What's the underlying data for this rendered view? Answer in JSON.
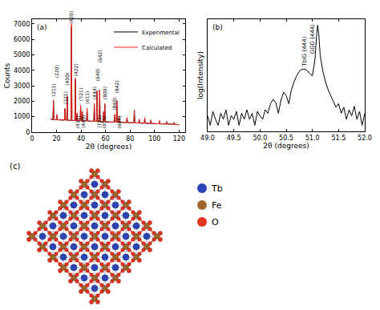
{
  "chart_data": [
    {
      "type": "line",
      "title": "(a)",
      "x_label": "2θ (degrees)",
      "y_label": "Counts",
      "x": [
        15,
        17.05,
        17.45,
        17.85,
        19.77,
        20.17,
        20.57,
        26.4,
        26.8,
        27.2,
        28.28,
        28.68,
        29.08,
        31.75,
        32.15,
        32.55,
        34.92,
        35.32,
        35.72,
        36.4,
        36.8,
        37.2,
        39.25,
        39.65,
        40.05,
        40.6,
        41.0,
        41.4,
        44.48,
        44.88,
        45.28,
        50.4,
        50.8,
        51.2,
        52.64,
        53.04,
        53.44,
        54.8,
        55.2,
        55.6,
        58.0,
        58.4,
        58.8,
        59.0,
        59.4,
        59.8,
        66.9,
        67.3,
        67.7,
        68.8,
        69.2,
        69.6,
        70.6,
        71.0,
        71.4,
        77.1,
        77.5,
        77.9,
        83.1,
        83.5,
        83.9,
        87.1,
        87.5,
        87.9,
        91.6,
        92.0,
        92.4,
        96.6,
        97.0,
        97.4,
        103.6,
        104.0,
        104.4,
        109.6,
        110.0,
        110.4,
        115.6,
        116.0,
        116.4,
        120
      ],
      "series": [
        {
          "name": "Experimental",
          "color": "#000000",
          "values": [
            850,
            810,
            2000,
            810,
            800,
            1100,
            800,
            780,
            1500,
            780,
            770,
            2300,
            770,
            760,
            6800,
            760,
            750,
            3400,
            750,
            745,
            1200,
            745,
            735,
            1700,
            735,
            730,
            1300,
            730,
            720,
            1500,
            720,
            700,
            1800,
            700,
            690,
            2600,
            690,
            685,
            2700,
            685,
            675,
            1300,
            675,
            670,
            1800,
            670,
            650,
            1100,
            650,
            645,
            2000,
            645,
            640,
            1000,
            640,
            620,
            900,
            620,
            600,
            1400,
            600,
            590,
            800,
            590,
            575,
            900,
            575,
            560,
            750,
            560,
            540,
            700,
            540,
            525,
            650,
            525,
            510,
            600,
            510,
            480
          ]
        },
        {
          "name": "Calculated",
          "color": "#e8231d",
          "values": [
            850,
            810,
            2100,
            810,
            800,
            1150,
            800,
            780,
            1550,
            780,
            770,
            2350,
            770,
            760,
            7000,
            760,
            750,
            3500,
            750,
            745,
            1250,
            745,
            735,
            1750,
            735,
            730,
            1350,
            730,
            720,
            1550,
            720,
            700,
            1850,
            700,
            690,
            2700,
            690,
            685,
            2750,
            685,
            675,
            1350,
            675,
            670,
            1850,
            670,
            650,
            1150,
            650,
            645,
            2050,
            645,
            640,
            1050,
            640,
            620,
            950,
            620,
            600,
            1450,
            600,
            590,
            850,
            590,
            575,
            950,
            575,
            560,
            800,
            560,
            540,
            750,
            540,
            525,
            700,
            525,
            510,
            650,
            510,
            480
          ]
        }
      ],
      "xlim": [
        0,
        125
      ],
      "xticks": [
        0,
        20,
        40,
        60,
        80,
        100,
        120
      ],
      "ylim": [
        0,
        7300
      ],
      "yticks": [
        0,
        1000,
        2000,
        3000,
        4000,
        5000,
        6000,
        7000
      ],
      "grid": false,
      "legend": "top right",
      "annotations": [
        {
          "text": "(211)",
          "x": 17.45,
          "y": 2200
        },
        {
          "text": "(220)",
          "x": 20.17,
          "y": 3400
        },
        {
          "text": "(321)",
          "x": 26.8,
          "y": 1700
        },
        {
          "text": "(400)",
          "x": 28.68,
          "y": 2900
        },
        {
          "text": "(420)",
          "x": 32.15,
          "y": 6900
        },
        {
          "text": "(422)",
          "x": 35.32,
          "y": 3500
        },
        {
          "text": "(521)",
          "x": 39.65,
          "y": 1900
        },
        {
          "text": "(611)",
          "x": 44.88,
          "y": 1700
        },
        {
          "text": "(444)",
          "x": 50.8,
          "y": 2000
        },
        {
          "text": "(640)",
          "x": 53.04,
          "y": 3200
        },
        {
          "text": "(642)",
          "x": 55.2,
          "y": 4400
        },
        {
          "text": "(800)",
          "x": 59.4,
          "y": 2000
        },
        {
          "text": "(840)",
          "x": 67.3,
          "y": 1300
        },
        {
          "text": "(842)",
          "x": 69.2,
          "y": 2400
        },
        {
          "text": "(431)",
          "x": 36.8,
          "y": 150
        },
        {
          "text": "(440)",
          "x": 41.0,
          "y": 150
        },
        {
          "text": "(721)",
          "x": 54.1,
          "y": 150
        },
        {
          "text": "(651)",
          "x": 58.4,
          "y": 150
        },
        {
          "text": "(664)",
          "x": 71.0,
          "y": 150
        }
      ]
    },
    {
      "type": "line",
      "title": "(b)",
      "x_label": "2θ (degrees)",
      "y_label": "log(Intensity)",
      "x": [
        49.0,
        49.05,
        49.1,
        49.15,
        49.2,
        49.25,
        49.3,
        49.35,
        49.4,
        49.45,
        49.5,
        49.55,
        49.6,
        49.65,
        49.7,
        49.75,
        49.8,
        49.85,
        49.9,
        49.95,
        50.0,
        50.05,
        50.1,
        50.15,
        50.2,
        50.25,
        50.3,
        50.35,
        50.4,
        50.45,
        50.5,
        50.55,
        50.6,
        50.65,
        50.7,
        50.75,
        50.8,
        50.85,
        50.9,
        50.95,
        51.0,
        51.05,
        51.08,
        51.1,
        51.12,
        51.15,
        51.2,
        51.25,
        51.3,
        51.35,
        51.4,
        51.45,
        51.5,
        51.55,
        51.6,
        51.65,
        51.7,
        51.75,
        51.8,
        51.85,
        51.9,
        51.95,
        52.0
      ],
      "values": [
        3,
        1,
        5,
        2,
        1,
        4,
        2,
        6,
        1,
        3,
        2,
        5,
        1,
        4,
        2,
        6,
        2,
        4,
        1,
        5,
        3,
        2,
        6,
        4,
        12,
        20,
        14,
        4,
        18,
        45,
        30,
        12,
        60,
        150,
        300,
        500,
        620,
        650,
        560,
        380,
        300,
        2000,
        30000,
        100000,
        40000,
        3000,
        500,
        150,
        60,
        30,
        15,
        8,
        12,
        4,
        8,
        2,
        6,
        3,
        9,
        2,
        5,
        1,
        4
      ],
      "color": "#000000",
      "xlim": [
        49,
        52
      ],
      "xticks": [
        {
          "value": 49,
          "label": "49.0"
        },
        {
          "value": 49.5,
          "label": "49.5"
        },
        {
          "value": 50,
          "label": "50.0"
        },
        {
          "value": 50.5,
          "label": "50.5"
        },
        {
          "value": 51,
          "label": "51.0"
        },
        {
          "value": 51.5,
          "label": "51.5"
        },
        {
          "value": 52,
          "label": "52.0"
        }
      ],
      "ylim": [
        0.5,
        200000
      ],
      "yticks": [],
      "log": "y",
      "grid": false,
      "tick_labels": "x",
      "annotations": [
        {
          "text": "TbIG (444)",
          "x": 50.85,
          "y": 700
        },
        {
          "text": "GGG (444)",
          "x": 51.0,
          "y": 3000
        }
      ]
    }
  ],
  "structure": {
    "title": "(c)",
    "legend": [
      {
        "name": "Tb",
        "color": "#2b44b8"
      },
      {
        "name": "Fe",
        "color": "#a0662b"
      },
      {
        "name": "O",
        "color": "#e5321f"
      }
    ]
  }
}
